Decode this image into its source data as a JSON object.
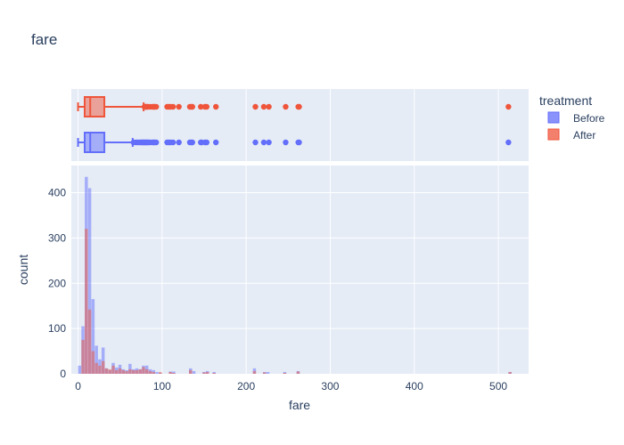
{
  "chart_data": {
    "type": "histogram",
    "title": "fare",
    "xlabel": "fare",
    "ylabel": "count",
    "xlim": [
      -8,
      536
    ],
    "ylim": [
      0,
      460
    ],
    "x_ticks": [
      0,
      100,
      200,
      300,
      400,
      500
    ],
    "y_ticks": [
      0,
      100,
      200,
      300,
      400
    ],
    "bin_width": 4,
    "legend": {
      "title": "treatment",
      "placement": "right"
    },
    "colors": {
      "before": "#636efa",
      "after": "#EF553B"
    },
    "series": [
      {
        "name": "Before",
        "histogram": {
          "bin_starts": [
            0,
            4,
            8,
            12,
            16,
            20,
            24,
            28,
            32,
            36,
            40,
            44,
            48,
            52,
            56,
            60,
            64,
            68,
            72,
            76,
            80,
            84,
            88,
            92,
            96,
            108,
            112,
            132,
            136,
            148,
            152,
            160,
            208,
            220,
            224,
            244,
            260,
            512
          ],
          "counts": [
            18,
            105,
            435,
            410,
            165,
            62,
            32,
            58,
            12,
            8,
            24,
            14,
            20,
            10,
            8,
            22,
            10,
            12,
            10,
            18,
            18,
            10,
            8,
            4,
            2,
            5,
            5,
            12,
            6,
            4,
            6,
            4,
            12,
            4,
            4,
            4,
            6,
            4
          ]
        },
        "box": {
          "min": 0,
          "q1": 7.9,
          "median": 14.5,
          "q3": 31.3,
          "upper_fence": 65,
          "outliers": [
            66,
            69,
            71,
            73,
            75,
            76,
            77,
            78,
            79,
            80,
            81,
            82,
            83,
            84,
            86,
            89,
            90,
            91,
            93,
            106,
            108,
            110,
            113,
            120,
            133,
            135,
            136,
            146,
            147,
            151,
            153,
            164,
            211,
            221,
            227,
            247,
            262,
            263,
            512
          ]
        }
      },
      {
        "name": "After",
        "histogram": {
          "bin_starts": [
            4,
            8,
            12,
            16,
            20,
            24,
            28,
            32,
            36,
            40,
            44,
            48,
            52,
            56,
            60,
            64,
            68,
            72,
            76,
            80,
            84,
            88,
            96,
            108,
            112,
            132,
            148,
            152,
            160,
            208,
            220,
            244,
            260,
            512
          ],
          "counts": [
            75,
            320,
            142,
            50,
            24,
            18,
            28,
            12,
            10,
            18,
            8,
            12,
            8,
            6,
            10,
            8,
            8,
            10,
            15,
            10,
            6,
            4,
            4,
            4,
            2,
            8,
            3,
            4,
            2,
            6,
            3,
            2,
            5,
            4
          ]
        },
        "box": {
          "min": 0,
          "q1": 7.9,
          "median": 14.5,
          "q3": 31.3,
          "upper_fence": 78,
          "outliers": [
            79,
            80,
            81,
            82,
            83,
            86,
            89,
            90,
            91,
            93,
            106,
            108,
            110,
            113,
            120,
            133,
            135,
            136,
            146,
            151,
            153,
            164,
            211,
            221,
            227,
            247,
            262,
            263,
            512
          ]
        }
      }
    ]
  }
}
